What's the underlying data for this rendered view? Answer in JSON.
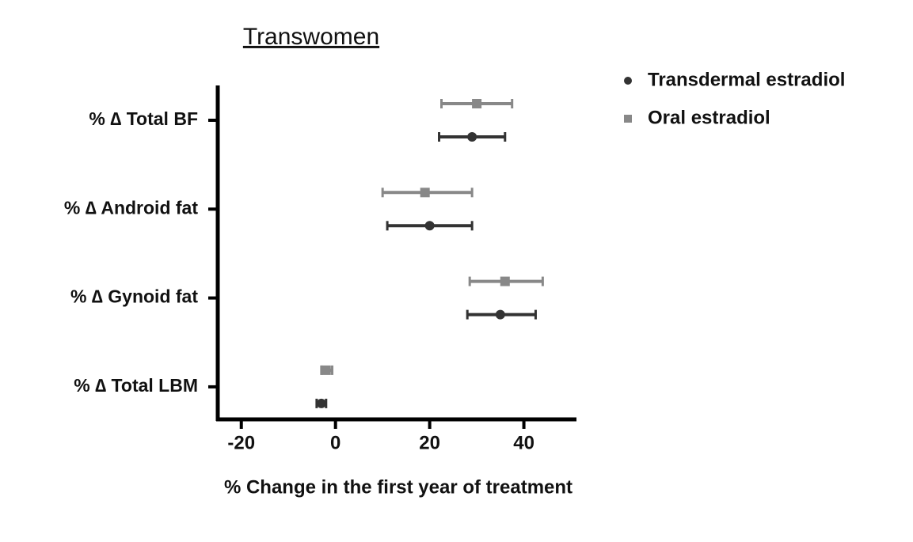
{
  "chart_data": {
    "type": "forest",
    "title": "Transwomen",
    "x_label": "% Change in the first year of treatment",
    "categories": [
      "% ∆ Total BF",
      "% ∆ Android fat",
      "% ∆ Gynoid fat",
      "% ∆ Total LBM"
    ],
    "series": [
      {
        "name": "Transdermal estradiol",
        "color": "#333333",
        "marker": "circle",
        "values": [
          29,
          20,
          35,
          -3
        ],
        "lower": [
          22,
          11,
          28,
          -4
        ],
        "upper": [
          36,
          29,
          42.5,
          -2
        ]
      },
      {
        "name": "Oral estradiol",
        "color": "#888888",
        "marker": "square",
        "values": [
          30,
          19,
          36,
          -2
        ],
        "lower": [
          22.5,
          10,
          28.5,
          -3
        ],
        "upper": [
          37.5,
          29,
          44,
          -0.7
        ]
      }
    ],
    "xlim": [
      -25,
      51
    ],
    "xticks": [
      -20,
      0,
      20,
      40
    ]
  }
}
